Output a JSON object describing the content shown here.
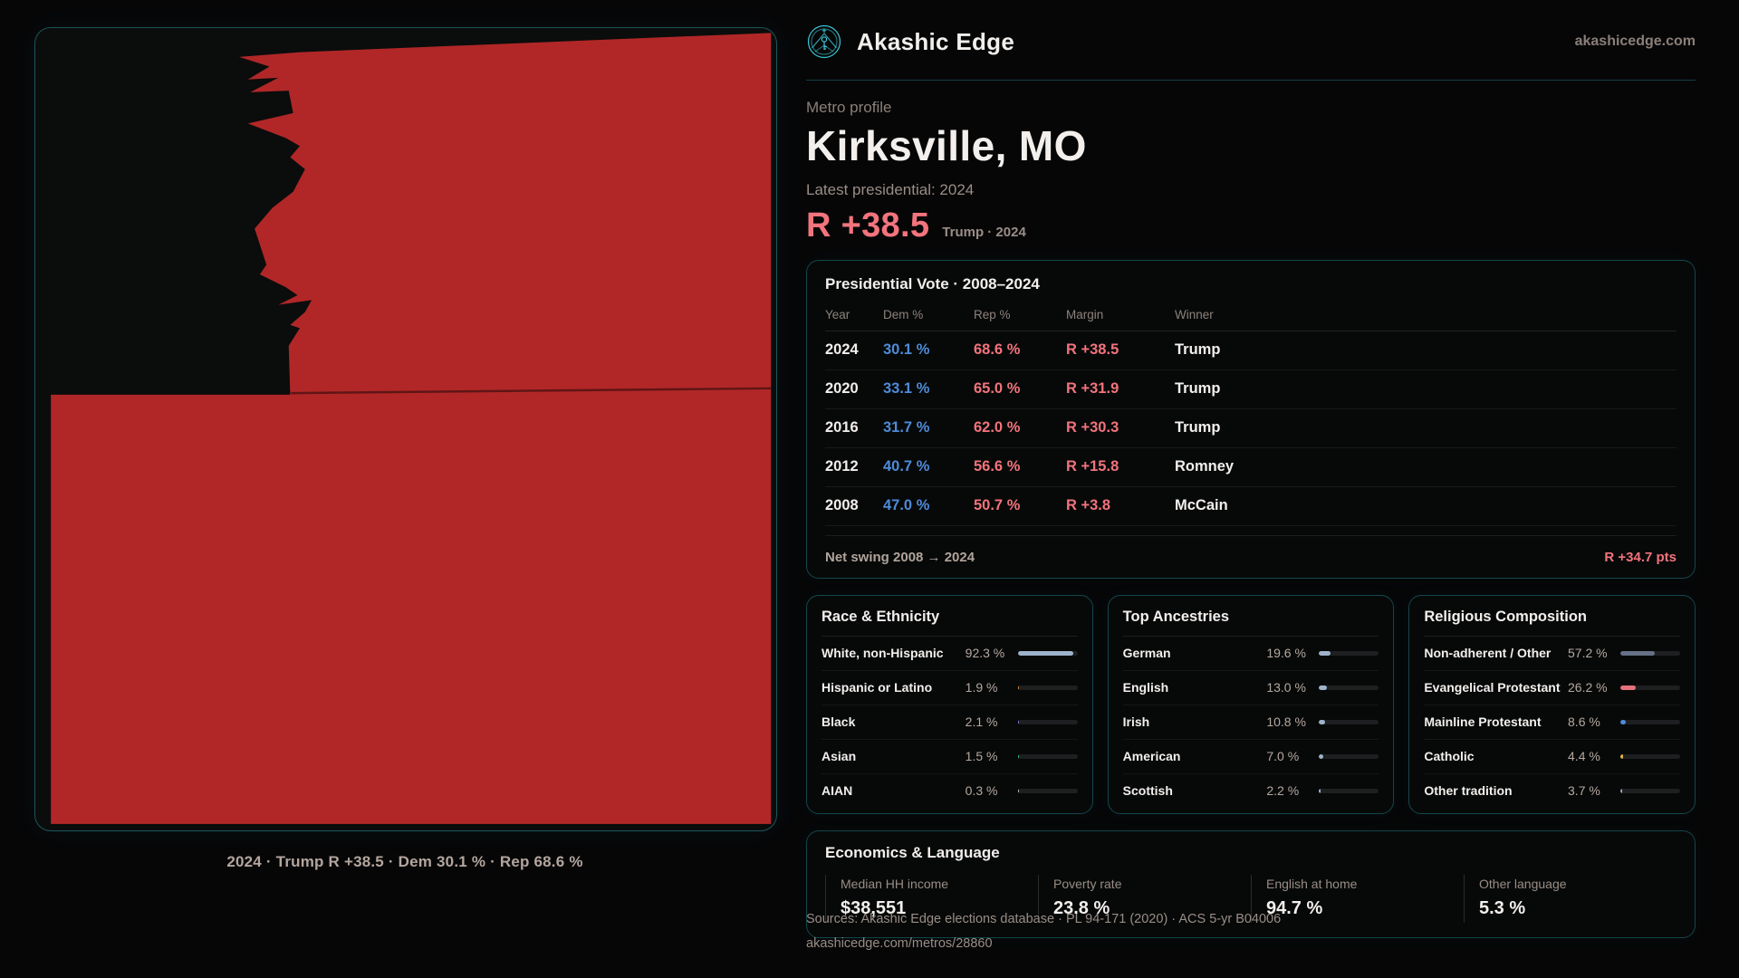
{
  "brand": {
    "name": "Akashic Edge",
    "domain": "akashicedge.com"
  },
  "theme": {
    "accent": "#3dc8d6",
    "dem_blue": "#4e8bd8",
    "rep_red": "#f2737b",
    "map_red": "#b12727"
  },
  "profile": {
    "kicker": "Metro profile",
    "title": "Kirksville, MO",
    "subtitle": "Latest presidential: 2024",
    "headline_margin": "R +38.5",
    "headline_note": "Trump · 2024"
  },
  "map": {
    "caption": "2024 · Trump R +38.5 · Dem 30.1 % · Rep 68.6 %"
  },
  "vote_table": {
    "title": "Presidential Vote · 2008–2024",
    "columns": [
      "Year",
      "Dem %",
      "Rep %",
      "Margin",
      "Winner"
    ],
    "rows": [
      {
        "year": "2024",
        "dem": "30.1 %",
        "rep": "68.6 %",
        "margin": "R +38.5",
        "winner": "Trump"
      },
      {
        "year": "2020",
        "dem": "33.1 %",
        "rep": "65.0 %",
        "margin": "R +31.9",
        "winner": "Trump"
      },
      {
        "year": "2016",
        "dem": "31.7 %",
        "rep": "62.0 %",
        "margin": "R +30.3",
        "winner": "Trump"
      },
      {
        "year": "2012",
        "dem": "40.7 %",
        "rep": "56.6 %",
        "margin": "R +15.8",
        "winner": "Romney"
      },
      {
        "year": "2008",
        "dem": "47.0 %",
        "rep": "50.7 %",
        "margin": "R +3.8",
        "winner": "McCain"
      }
    ],
    "net_swing_label": "Net swing 2008 → 2024",
    "net_swing_value": "R +34.7 pts"
  },
  "panels": [
    {
      "title": "Race & Ethnicity",
      "rows": [
        {
          "label": "White, non-Hispanic",
          "value": "92.3 %",
          "pct": 92.3,
          "color": "#9eb3cb"
        },
        {
          "label": "Hispanic or Latino",
          "value": "1.9 %",
          "pct": 1.9,
          "color": "#e09137"
        },
        {
          "label": "Black",
          "value": "2.1 %",
          "pct": 2.1,
          "color": "#8b7fe0"
        },
        {
          "label": "Asian",
          "value": "1.5 %",
          "pct": 1.5,
          "color": "#2fc6a0"
        },
        {
          "label": "AIAN",
          "value": "0.3 %",
          "pct": 0.3,
          "color": "#c7cdd4"
        }
      ]
    },
    {
      "title": "Top Ancestries",
      "rows": [
        {
          "label": "German",
          "value": "19.6 %",
          "pct": 19.6,
          "color": "#9eb3cb"
        },
        {
          "label": "English",
          "value": "13.0 %",
          "pct": 13.0,
          "color": "#9eb3cb"
        },
        {
          "label": "Irish",
          "value": "10.8 %",
          "pct": 10.8,
          "color": "#9eb3cb"
        },
        {
          "label": "American",
          "value": "7.0 %",
          "pct": 7.0,
          "color": "#9eb3cb"
        },
        {
          "label": "Scottish",
          "value": "2.2 %",
          "pct": 2.2,
          "color": "#9eb3cb"
        }
      ]
    },
    {
      "title": "Religious Composition",
      "rows": [
        {
          "label": "Non-adherent / Other",
          "value": "57.2 %",
          "pct": 57.2,
          "color": "#667086"
        },
        {
          "label": "Evangelical Protestant",
          "value": "26.2 %",
          "pct": 26.2,
          "color": "#e4727c"
        },
        {
          "label": "Mainline Protestant",
          "value": "8.6 %",
          "pct": 8.6,
          "color": "#4e8bd8"
        },
        {
          "label": "Catholic",
          "value": "4.4 %",
          "pct": 4.4,
          "color": "#e3b33c"
        },
        {
          "label": "Other tradition",
          "value": "3.7 %",
          "pct": 3.7,
          "color": "#9aa7b5"
        }
      ]
    }
  ],
  "economics": {
    "title": "Economics & Language",
    "stats": [
      {
        "label": "Median HH income",
        "value": "$38,551"
      },
      {
        "label": "Poverty rate",
        "value": "23.8 %"
      },
      {
        "label": "English at home",
        "value": "94.7 %"
      },
      {
        "label": "Other language",
        "value": "5.3 %"
      }
    ]
  },
  "footer": {
    "line1": "Sources: Akashic Edge elections database · PL 94-171 (2020) · ACS 5-yr B04006",
    "line2": "akashicedge.com/metros/28860"
  },
  "chart_data": [
    {
      "type": "table",
      "title": "Presidential Vote · 2008–2024",
      "columns": [
        "Year",
        "Dem %",
        "Rep %",
        "Margin",
        "Winner"
      ],
      "rows": [
        [
          "2024",
          30.1,
          68.6,
          "R +38.5",
          "Trump"
        ],
        [
          "2020",
          33.1,
          65.0,
          "R +31.9",
          "Trump"
        ],
        [
          "2016",
          31.7,
          62.0,
          "R +30.3",
          "Trump"
        ],
        [
          "2012",
          40.7,
          56.6,
          "R +15.8",
          "Romney"
        ],
        [
          "2008",
          47.0,
          50.7,
          "R +3.8",
          "McCain"
        ]
      ],
      "net_swing": "R +34.7 pts"
    },
    {
      "type": "bar",
      "title": "Race & Ethnicity",
      "categories": [
        "White, non-Hispanic",
        "Hispanic or Latino",
        "Black",
        "Asian",
        "AIAN"
      ],
      "values": [
        92.3,
        1.9,
        2.1,
        1.5,
        0.3
      ],
      "xlim": [
        0,
        100
      ]
    },
    {
      "type": "bar",
      "title": "Top Ancestries",
      "categories": [
        "German",
        "English",
        "Irish",
        "American",
        "Scottish"
      ],
      "values": [
        19.6,
        13.0,
        10.8,
        7.0,
        2.2
      ],
      "xlim": [
        0,
        100
      ]
    },
    {
      "type": "bar",
      "title": "Religious Composition",
      "categories": [
        "Non-adherent / Other",
        "Evangelical Protestant",
        "Mainline Protestant",
        "Catholic",
        "Other tradition"
      ],
      "values": [
        57.2,
        26.2,
        8.6,
        4.4,
        3.7
      ],
      "xlim": [
        0,
        100
      ]
    }
  ]
}
